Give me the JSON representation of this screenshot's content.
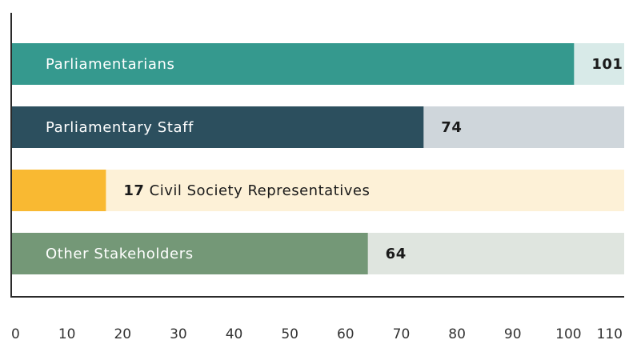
{
  "chart_data": {
    "type": "bar",
    "orientation": "horizontal",
    "categories": [
      "Parliamentarians",
      "Parliamentary Staff",
      "Civil Society Representatives",
      "Other Stakeholders"
    ],
    "values": [
      101,
      74,
      17,
      64
    ],
    "value_labels": [
      "101",
      "74",
      "17",
      "64"
    ],
    "label_placement": [
      "inside",
      "inside",
      "after-value",
      "inside"
    ],
    "xlim": [
      0,
      110
    ],
    "xticks": [
      0,
      10,
      20,
      30,
      40,
      50,
      60,
      70,
      80,
      90,
      100,
      110
    ],
    "title": "",
    "xlabel": "",
    "ylabel": "",
    "grid": false,
    "legend": "none",
    "colors": {
      "bars": [
        "#35998e",
        "#2c4f5e",
        "#f9b932",
        "#749877"
      ],
      "tracks": [
        "#d8eae8",
        "#cfd6db",
        "#fdf1d7",
        "#dfe5df"
      ],
      "bar_label_text": "#ffffff",
      "value_text": "#1a1a1a",
      "axis": "#2a2a2a",
      "tick_text": "#333333"
    }
  }
}
